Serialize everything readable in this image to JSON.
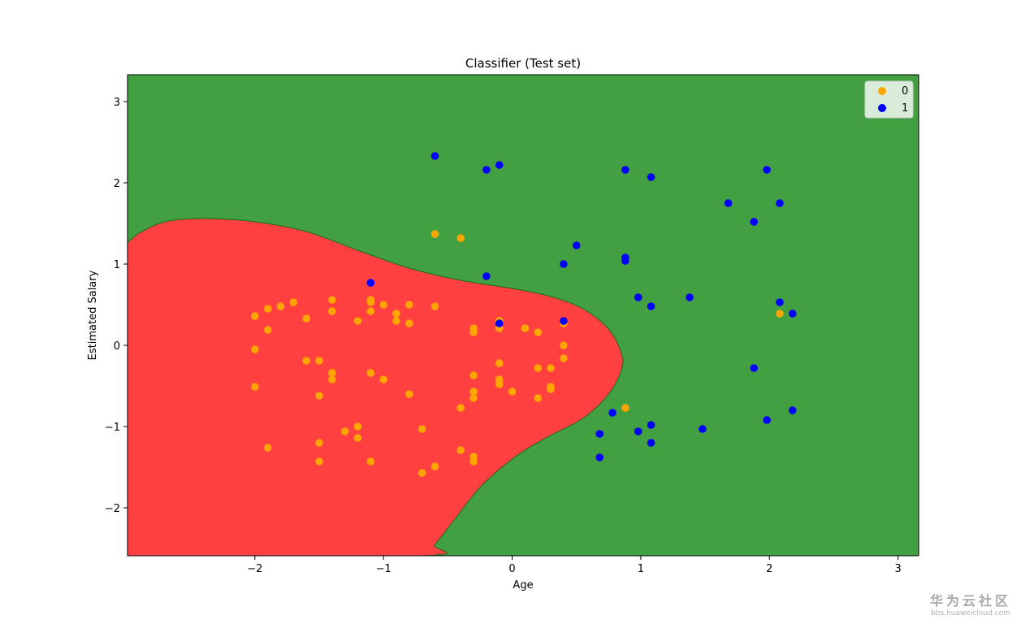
{
  "chart_data": {
    "type": "scatter",
    "title": "Classifier (Test set)",
    "xlabel": "Age",
    "ylabel": "Estimated Salary",
    "xlim": [
      -2.99,
      3.16
    ],
    "ylim": [
      -2.59,
      3.33
    ],
    "xticks": [
      -2,
      -1,
      0,
      1,
      2,
      3
    ],
    "xtick_labels": [
      "−2",
      "−1",
      "0",
      "1",
      "2",
      "3"
    ],
    "yticks": [
      -2,
      -1,
      0,
      1,
      2,
      3
    ],
    "ytick_labels": [
      "−2",
      "−1",
      "0",
      "1",
      "2",
      "3"
    ],
    "legend_position": "top-right",
    "grid": false,
    "background_regions": {
      "class_0_color": "#ff4040",
      "class_1_color": "#42a042",
      "class_0_region_boundary": [
        [
          -2.99,
          1.26
        ],
        [
          -2.9,
          1.38
        ],
        [
          -2.7,
          1.52
        ],
        [
          -2.4,
          1.56
        ],
        [
          -2.0,
          1.52
        ],
        [
          -1.6,
          1.4
        ],
        [
          -1.2,
          1.17
        ],
        [
          -0.8,
          0.95
        ],
        [
          -0.4,
          0.8
        ],
        [
          0.0,
          0.7
        ],
        [
          0.3,
          0.6
        ],
        [
          0.55,
          0.45
        ],
        [
          0.75,
          0.2
        ],
        [
          0.85,
          -0.1
        ],
        [
          0.85,
          -0.3
        ],
        [
          0.75,
          -0.6
        ],
        [
          0.55,
          -0.9
        ],
        [
          0.25,
          -1.15
        ],
        [
          0.0,
          -1.4
        ],
        [
          -0.25,
          -1.75
        ],
        [
          -0.45,
          -2.15
        ],
        [
          -0.6,
          -2.45
        ],
        [
          -0.7,
          -2.59
        ],
        [
          -2.99,
          -2.59
        ]
      ]
    },
    "series": [
      {
        "name": "0",
        "color": "#ffa500",
        "points": [
          [
            -2.0,
            0.36
          ],
          [
            -2.0,
            -0.05
          ],
          [
            -2.0,
            -0.51
          ],
          [
            -1.9,
            0.45
          ],
          [
            -1.9,
            0.19
          ],
          [
            -1.9,
            -1.26
          ],
          [
            -1.8,
            0.48
          ],
          [
            -1.7,
            0.53
          ],
          [
            -1.6,
            0.33
          ],
          [
            -1.6,
            -0.19
          ],
          [
            -1.5,
            -0.19
          ],
          [
            -1.5,
            -0.62
          ],
          [
            -1.5,
            -1.2
          ],
          [
            -1.5,
            -1.43
          ],
          [
            -1.4,
            0.56
          ],
          [
            -1.4,
            0.42
          ],
          [
            -1.4,
            -0.34
          ],
          [
            -1.4,
            -0.42
          ],
          [
            -1.3,
            -1.06
          ],
          [
            -1.2,
            0.3
          ],
          [
            -1.2,
            -1.0
          ],
          [
            -1.2,
            -1.14
          ],
          [
            -1.1,
            0.56
          ],
          [
            -1.1,
            0.53
          ],
          [
            -1.1,
            0.42
          ],
          [
            -1.1,
            -0.34
          ],
          [
            -1.1,
            -1.43
          ],
          [
            -1.0,
            0.5
          ],
          [
            -1.0,
            -0.42
          ],
          [
            -0.9,
            0.39
          ],
          [
            -0.9,
            0.3
          ],
          [
            -0.8,
            0.5
          ],
          [
            -0.8,
            0.27
          ],
          [
            -0.8,
            -0.6
          ],
          [
            -0.7,
            -1.03
          ],
          [
            -0.7,
            -1.57
          ],
          [
            -0.6,
            1.37
          ],
          [
            -0.6,
            0.48
          ],
          [
            -0.6,
            -1.49
          ],
          [
            -0.4,
            1.32
          ],
          [
            -0.4,
            -0.77
          ],
          [
            -0.4,
            -1.29
          ],
          [
            -0.3,
            0.21
          ],
          [
            -0.3,
            0.16
          ],
          [
            -0.3,
            -0.37
          ],
          [
            -0.3,
            -0.57
          ],
          [
            -0.3,
            -0.65
          ],
          [
            -0.3,
            -1.37
          ],
          [
            -0.3,
            -1.43
          ],
          [
            -0.1,
            0.3
          ],
          [
            -0.1,
            0.21
          ],
          [
            -0.1,
            -0.22
          ],
          [
            -0.1,
            -0.42
          ],
          [
            -0.1,
            -0.48
          ],
          [
            0.0,
            -0.57
          ],
          [
            0.1,
            0.21
          ],
          [
            0.2,
            0.16
          ],
          [
            0.2,
            -0.28
          ],
          [
            0.2,
            -0.65
          ],
          [
            0.3,
            -0.28
          ],
          [
            0.3,
            -0.51
          ],
          [
            0.3,
            -0.54
          ],
          [
            0.4,
            0.27
          ],
          [
            0.4,
            0.0
          ],
          [
            0.4,
            -0.16
          ],
          [
            0.88,
            -0.77
          ],
          [
            2.08,
            0.39
          ]
        ]
      },
      {
        "name": "1",
        "color": "#0000ff",
        "points": [
          [
            -0.6,
            2.33
          ],
          [
            -0.2,
            2.16
          ],
          [
            -0.1,
            2.22
          ],
          [
            -0.2,
            0.85
          ],
          [
            -1.1,
            0.77
          ],
          [
            -0.1,
            0.27
          ],
          [
            0.4,
            0.3
          ],
          [
            0.4,
            1.0
          ],
          [
            0.5,
            1.23
          ],
          [
            0.88,
            2.16
          ],
          [
            1.08,
            2.07
          ],
          [
            0.88,
            1.08
          ],
          [
            0.88,
            1.04
          ],
          [
            0.98,
            0.59
          ],
          [
            1.08,
            0.48
          ],
          [
            1.38,
            0.59
          ],
          [
            1.68,
            1.75
          ],
          [
            1.88,
            1.52
          ],
          [
            1.98,
            2.16
          ],
          [
            2.08,
            1.75
          ],
          [
            2.08,
            0.53
          ],
          [
            2.18,
            0.39
          ],
          [
            1.88,
            -0.28
          ],
          [
            1.98,
            -0.92
          ],
          [
            2.18,
            -0.8
          ],
          [
            1.48,
            -1.03
          ],
          [
            1.08,
            -0.98
          ],
          [
            1.08,
            -1.2
          ],
          [
            0.98,
            -1.06
          ],
          [
            0.78,
            -0.83
          ],
          [
            0.68,
            -1.09
          ],
          [
            0.68,
            -1.38
          ]
        ]
      }
    ]
  },
  "legend": {
    "items": [
      {
        "label": "0",
        "color": "#ffa500"
      },
      {
        "label": "1",
        "color": "#0000ff"
      }
    ]
  },
  "watermark": {
    "main": "华为云社区",
    "sub": "bbs.huaweicloud.com"
  }
}
